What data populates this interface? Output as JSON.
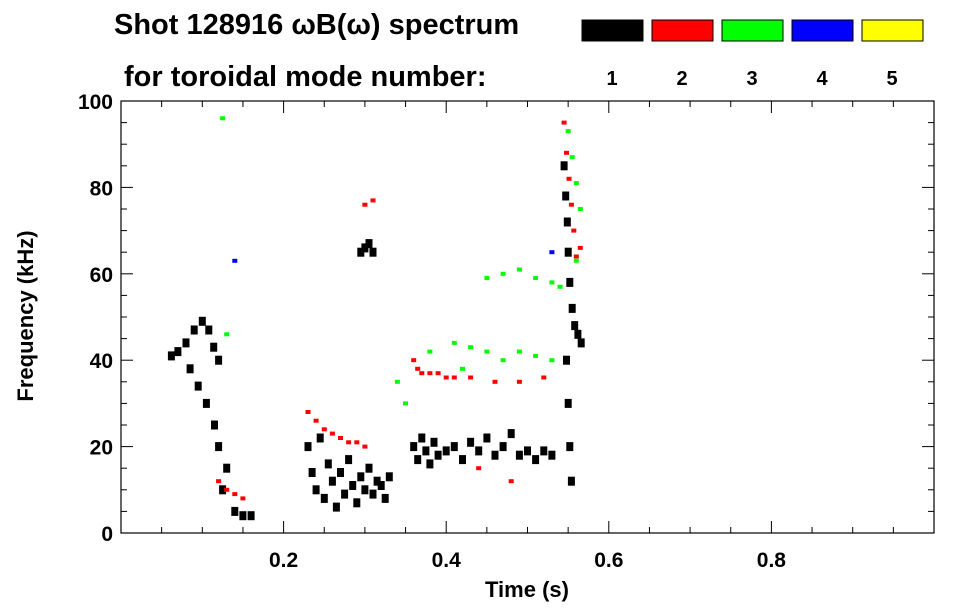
{
  "chart_data": {
    "type": "heatmap",
    "title_line1": "Shot 128916 ωB(ω) spectrum",
    "title_line2": "for toroidal mode number:",
    "xlabel": "Time (s)",
    "ylabel": "Frequency (kHz)",
    "xlim": [
      0.0,
      1.0
    ],
    "ylim": [
      0,
      100
    ],
    "x_ticks": [
      {
        "value": 0.2,
        "label": "0.2"
      },
      {
        "value": 0.4,
        "label": "0.4"
      },
      {
        "value": 0.6,
        "label": "0.6"
      },
      {
        "value": 0.8,
        "label": "0.8"
      }
    ],
    "y_ticks": [
      {
        "value": 0,
        "label": "0"
      },
      {
        "value": 20,
        "label": "20"
      },
      {
        "value": 40,
        "label": "40"
      },
      {
        "value": 60,
        "label": "60"
      },
      {
        "value": 80,
        "label": "80"
      },
      {
        "value": 100,
        "label": "100"
      }
    ],
    "legend_position": "top-right",
    "legend": [
      {
        "n": "1",
        "color": "#000000"
      },
      {
        "n": "2",
        "color": "#ff0000"
      },
      {
        "n": "3",
        "color": "#00ff00"
      },
      {
        "n": "4",
        "color": "#0000ff"
      },
      {
        "n": "5",
        "color": "#ffff00"
      }
    ],
    "series": [
      {
        "mode": 1,
        "color": "#000000",
        "points": [
          [
            0.062,
            41
          ],
          [
            0.07,
            42
          ],
          [
            0.08,
            44
          ],
          [
            0.09,
            47
          ],
          [
            0.1,
            49
          ],
          [
            0.108,
            47
          ],
          [
            0.114,
            43
          ],
          [
            0.12,
            40
          ],
          [
            0.085,
            38
          ],
          [
            0.095,
            34
          ],
          [
            0.105,
            30
          ],
          [
            0.115,
            25
          ],
          [
            0.12,
            20
          ],
          [
            0.13,
            15
          ],
          [
            0.125,
            10
          ],
          [
            0.14,
            5
          ],
          [
            0.15,
            4
          ],
          [
            0.16,
            4
          ],
          [
            0.23,
            20
          ],
          [
            0.235,
            14
          ],
          [
            0.24,
            10
          ],
          [
            0.245,
            22
          ],
          [
            0.25,
            8
          ],
          [
            0.255,
            16
          ],
          [
            0.26,
            12
          ],
          [
            0.265,
            6
          ],
          [
            0.27,
            14
          ],
          [
            0.275,
            9
          ],
          [
            0.28,
            17
          ],
          [
            0.285,
            11
          ],
          [
            0.29,
            7
          ],
          [
            0.295,
            13
          ],
          [
            0.3,
            10
          ],
          [
            0.305,
            15
          ],
          [
            0.31,
            9
          ],
          [
            0.315,
            12
          ],
          [
            0.32,
            11
          ],
          [
            0.325,
            8
          ],
          [
            0.33,
            13
          ],
          [
            0.295,
            65
          ],
          [
            0.3,
            66
          ],
          [
            0.305,
            67
          ],
          [
            0.31,
            65
          ],
          [
            0.36,
            20
          ],
          [
            0.365,
            17
          ],
          [
            0.37,
            22
          ],
          [
            0.375,
            19
          ],
          [
            0.38,
            16
          ],
          [
            0.385,
            21
          ],
          [
            0.39,
            18
          ],
          [
            0.4,
            19
          ],
          [
            0.41,
            20
          ],
          [
            0.42,
            17
          ],
          [
            0.43,
            21
          ],
          [
            0.44,
            19
          ],
          [
            0.45,
            22
          ],
          [
            0.46,
            18
          ],
          [
            0.47,
            20
          ],
          [
            0.48,
            23
          ],
          [
            0.49,
            18
          ],
          [
            0.5,
            19
          ],
          [
            0.51,
            17
          ],
          [
            0.52,
            19
          ],
          [
            0.53,
            18
          ],
          [
            0.545,
            85
          ],
          [
            0.547,
            78
          ],
          [
            0.549,
            72
          ],
          [
            0.55,
            65
          ],
          [
            0.552,
            58
          ],
          [
            0.555,
            52
          ],
          [
            0.558,
            48
          ],
          [
            0.562,
            46
          ],
          [
            0.566,
            44
          ],
          [
            0.548,
            40
          ],
          [
            0.55,
            30
          ],
          [
            0.552,
            20
          ],
          [
            0.554,
            12
          ]
        ]
      },
      {
        "mode": 2,
        "color": "#ff0000",
        "points": [
          [
            0.13,
            10
          ],
          [
            0.14,
            9
          ],
          [
            0.15,
            8
          ],
          [
            0.12,
            12
          ],
          [
            0.23,
            28
          ],
          [
            0.24,
            26
          ],
          [
            0.25,
            24
          ],
          [
            0.26,
            23
          ],
          [
            0.27,
            22
          ],
          [
            0.28,
            21
          ],
          [
            0.29,
            21
          ],
          [
            0.3,
            20
          ],
          [
            0.3,
            76
          ],
          [
            0.31,
            77
          ],
          [
            0.36,
            40
          ],
          [
            0.365,
            38
          ],
          [
            0.37,
            37
          ],
          [
            0.38,
            37
          ],
          [
            0.39,
            37
          ],
          [
            0.4,
            36
          ],
          [
            0.41,
            36
          ],
          [
            0.43,
            36
          ],
          [
            0.46,
            35
          ],
          [
            0.49,
            35
          ],
          [
            0.52,
            36
          ],
          [
            0.545,
            95
          ],
          [
            0.548,
            88
          ],
          [
            0.551,
            82
          ],
          [
            0.554,
            76
          ],
          [
            0.557,
            70
          ],
          [
            0.56,
            64
          ],
          [
            0.565,
            66
          ],
          [
            0.44,
            15
          ],
          [
            0.48,
            12
          ]
        ]
      },
      {
        "mode": 3,
        "color": "#00ff00",
        "points": [
          [
            0.125,
            96
          ],
          [
            0.13,
            46
          ],
          [
            0.34,
            35
          ],
          [
            0.41,
            44
          ],
          [
            0.43,
            43
          ],
          [
            0.45,
            42
          ],
          [
            0.47,
            40
          ],
          [
            0.49,
            42
          ],
          [
            0.51,
            41
          ],
          [
            0.53,
            40
          ],
          [
            0.45,
            59
          ],
          [
            0.47,
            60
          ],
          [
            0.49,
            61
          ],
          [
            0.51,
            59
          ],
          [
            0.53,
            58
          ],
          [
            0.54,
            57
          ],
          [
            0.55,
            93
          ],
          [
            0.555,
            87
          ],
          [
            0.56,
            81
          ],
          [
            0.565,
            75
          ],
          [
            0.56,
            63
          ],
          [
            0.35,
            30
          ],
          [
            0.38,
            42
          ],
          [
            0.42,
            38
          ]
        ]
      },
      {
        "mode": 4,
        "color": "#0000ff",
        "points": [
          [
            0.14,
            63
          ],
          [
            0.53,
            65
          ]
        ]
      },
      {
        "mode": 5,
        "color": "#ffff00",
        "points": []
      }
    ]
  }
}
